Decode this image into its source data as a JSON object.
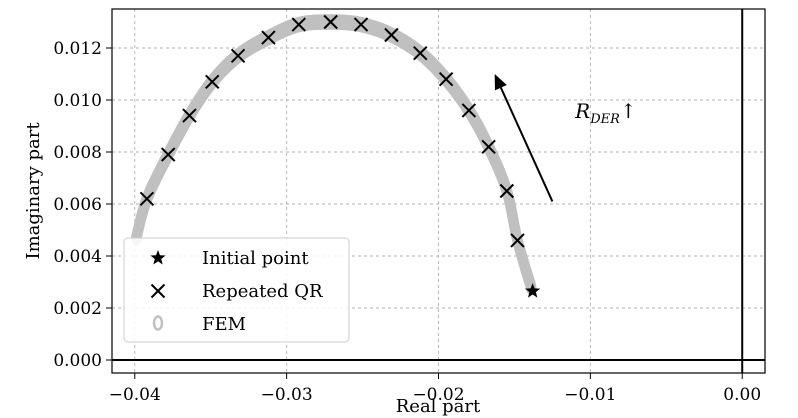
{
  "chart_data": {
    "type": "scatter",
    "xlabel": "Real part",
    "ylabel": "Imaginary part",
    "xlim": [
      -0.0415,
      0.0015
    ],
    "ylim": [
      -0.0005,
      0.0135
    ],
    "xticks": [
      -0.04,
      -0.03,
      -0.02,
      -0.01,
      0.0
    ],
    "xtick_labels": [
      "−0.04",
      "−0.03",
      "−0.02",
      "−0.01",
      "0.00"
    ],
    "yticks": [
      0.0,
      0.002,
      0.004,
      0.006,
      0.008,
      0.01,
      0.012
    ],
    "ytick_labels": [
      "0.000",
      "0.002",
      "0.004",
      "0.006",
      "0.008",
      "0.010",
      "0.012"
    ],
    "grid": true,
    "legend_position": "lower-left",
    "reference_lines": {
      "x": 0.0,
      "y": 0.0
    },
    "colors": {
      "fem": "#c0c0c0",
      "markers": "#000000"
    },
    "series": [
      {
        "name": "Initial point",
        "marker": "star",
        "points": [
          [
            -0.0138,
            0.00265
          ]
        ]
      },
      {
        "name": "Repeated QR",
        "marker": "x",
        "points": [
          [
            -0.0392,
            0.0062
          ],
          [
            -0.0378,
            0.0079
          ],
          [
            -0.0364,
            0.0094
          ],
          [
            -0.0349,
            0.0107
          ],
          [
            -0.0332,
            0.0117
          ],
          [
            -0.0312,
            0.0124
          ],
          [
            -0.0292,
            0.0129
          ],
          [
            -0.0271,
            0.013
          ],
          [
            -0.0251,
            0.0129
          ],
          [
            -0.0231,
            0.0125
          ],
          [
            -0.0212,
            0.0118
          ],
          [
            -0.0195,
            0.0108
          ],
          [
            -0.018,
            0.0096
          ],
          [
            -0.0167,
            0.0082
          ],
          [
            -0.0155,
            0.0065
          ],
          [
            -0.0148,
            0.0046
          ]
        ]
      },
      {
        "name": "FEM",
        "marker": "o",
        "curve": [
          [
            -0.0399,
            0.0047
          ],
          [
            -0.0392,
            0.0062
          ],
          [
            -0.0378,
            0.0079
          ],
          [
            -0.0364,
            0.0094
          ],
          [
            -0.0349,
            0.0107
          ],
          [
            -0.0332,
            0.0117
          ],
          [
            -0.0312,
            0.0124
          ],
          [
            -0.0292,
            0.0129
          ],
          [
            -0.0271,
            0.013
          ],
          [
            -0.0251,
            0.0129
          ],
          [
            -0.0231,
            0.0125
          ],
          [
            -0.0212,
            0.0118
          ],
          [
            -0.0195,
            0.0108
          ],
          [
            -0.018,
            0.0096
          ],
          [
            -0.0167,
            0.0082
          ],
          [
            -0.0155,
            0.0065
          ],
          [
            -0.0148,
            0.0046
          ],
          [
            -0.0139,
            0.0028
          ]
        ]
      }
    ],
    "annotation": {
      "text": "R",
      "subscript": "DER",
      "suffix": "↑",
      "arrow_from": [
        -0.0125,
        0.0061
      ],
      "arrow_to": [
        -0.0163,
        0.011
      ],
      "text_anchor": [
        -0.011,
        0.0093
      ]
    }
  }
}
